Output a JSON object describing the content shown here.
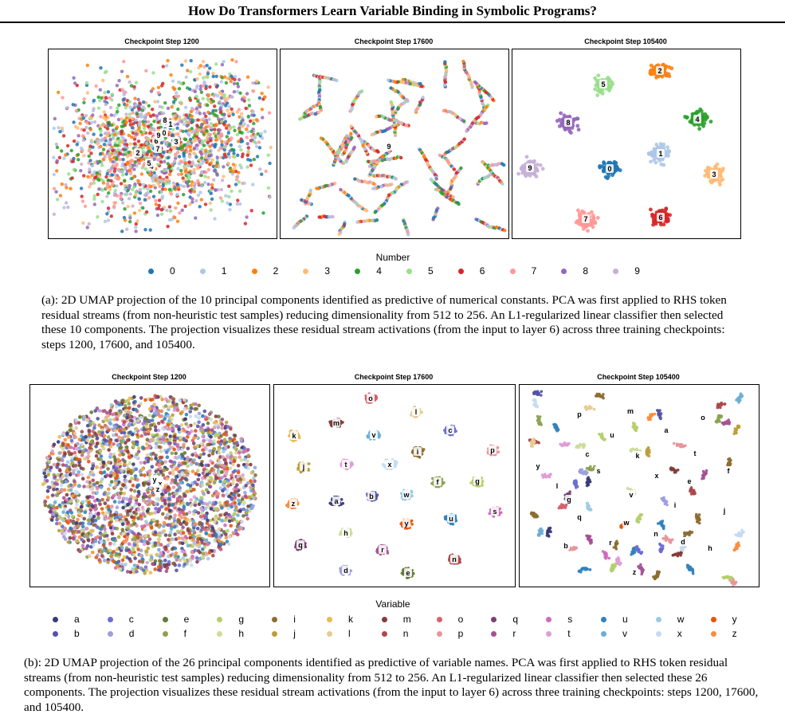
{
  "page": {
    "title": "How Do Transformers Learn Variable Binding in Symbolic Programs?"
  },
  "figure_a": {
    "panel_titles": [
      "Checkpoint Step 1200",
      "Checkpoint Step 17600",
      "Checkpoint Step 105400"
    ],
    "legend_title": "Number",
    "legend": [
      {
        "label": "0",
        "color": "#1f77b4"
      },
      {
        "label": "1",
        "color": "#aec7e8"
      },
      {
        "label": "2",
        "color": "#ff7f0e"
      },
      {
        "label": "3",
        "color": "#ffbb78"
      },
      {
        "label": "4",
        "color": "#2ca02c"
      },
      {
        "label": "5",
        "color": "#98df8a"
      },
      {
        "label": "6",
        "color": "#d62728"
      },
      {
        "label": "7",
        "color": "#ff9896"
      },
      {
        "label": "8",
        "color": "#9467bd"
      },
      {
        "label": "9",
        "color": "#c5b0d5"
      }
    ],
    "caption": "(a): 2D UMAP projection of the 10 principal components identified as predictive of numerical constants. PCA was first applied to RHS token residual streams (from non-heuristic test samples) reducing dimensionality from 512 to 256. An L1-regularized linear classifier then selected these 10 components. The projection visualizes these residual stream activations (from the input to layer 6) across three training checkpoints: steps 1200, 17600, and 105400."
  },
  "figure_b": {
    "panel_titles": [
      "Checkpoint Step 1200",
      "Checkpoint Step 17600",
      "Checkpoint Step 105400"
    ],
    "legend_title": "Variable",
    "legend": [
      {
        "label": "a",
        "color": "#393b79"
      },
      {
        "label": "b",
        "color": "#5254a3"
      },
      {
        "label": "c",
        "color": "#6b6ecf"
      },
      {
        "label": "d",
        "color": "#9c9ede"
      },
      {
        "label": "e",
        "color": "#637939"
      },
      {
        "label": "f",
        "color": "#8ca252"
      },
      {
        "label": "g",
        "color": "#b5cf6b"
      },
      {
        "label": "h",
        "color": "#cedb9c"
      },
      {
        "label": "i",
        "color": "#8c6d31"
      },
      {
        "label": "j",
        "color": "#bd9e39"
      },
      {
        "label": "k",
        "color": "#e7ba52"
      },
      {
        "label": "l",
        "color": "#e7cb94"
      },
      {
        "label": "m",
        "color": "#843c39"
      },
      {
        "label": "n",
        "color": "#ad494a"
      },
      {
        "label": "o",
        "color": "#d6616b"
      },
      {
        "label": "p",
        "color": "#e7969c"
      },
      {
        "label": "q",
        "color": "#7b4173"
      },
      {
        "label": "r",
        "color": "#a55194"
      },
      {
        "label": "s",
        "color": "#ce6dbd"
      },
      {
        "label": "t",
        "color": "#de9ed6"
      },
      {
        "label": "u",
        "color": "#3182bd"
      },
      {
        "label": "v",
        "color": "#6baed6"
      },
      {
        "label": "w",
        "color": "#9ecae1"
      },
      {
        "label": "x",
        "color": "#c6dbef"
      },
      {
        "label": "y",
        "color": "#e6550d"
      },
      {
        "label": "z",
        "color": "#fd8d3c"
      }
    ],
    "caption": "(b): 2D UMAP projection of the 26 principal components identified as predictive of variable names. PCA was first applied to RHS token residual streams (from non-heuristic test samples) reducing dimensionality from 512 to 256. An L1-regularized linear classifier then selected these 26 components. The projection visualizes these residual stream activations (from the input to layer 6) across three training checkpoints: steps 1200, 17600, and 105400."
  }
}
